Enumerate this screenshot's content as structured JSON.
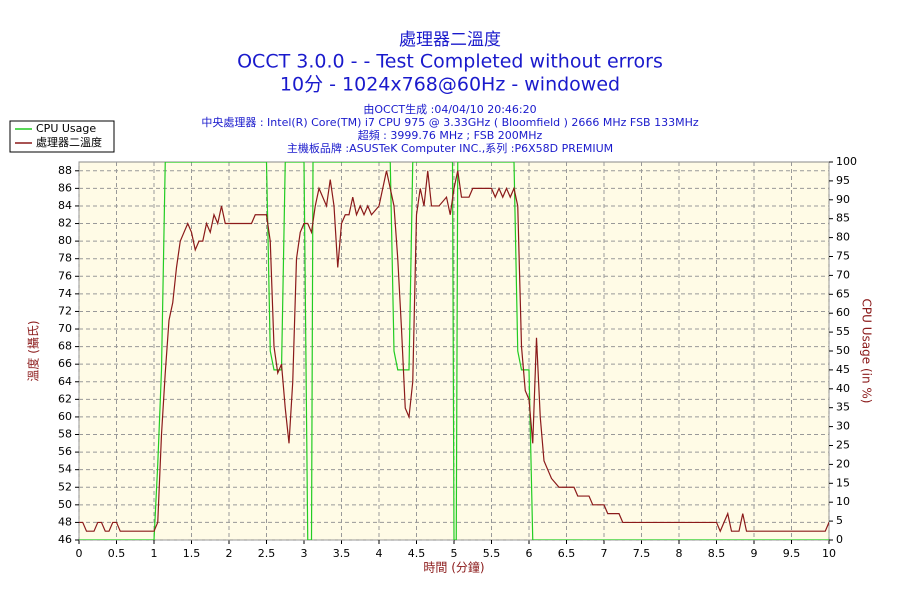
{
  "chart_data": {
    "type": "line",
    "title": "處理器二溫度",
    "subtitle": [
      "OCCT 3.0.0 -  - Test Completed without errors",
      "10分 - 1024x768@60Hz - windowed"
    ],
    "info": [
      "由OCCT生成 :04/04/10 20:46:20",
      "中央處理器 : Intel(R) Core(TM) i7 CPU 975 @ 3.33GHz ( Bloomfield ) 2666 MHz FSB 133MHz",
      "超頻 : 3999.76 MHz ; FSB 200MHz",
      "主機板品牌 :ASUSTeK Computer INC.,系列 :P6X58D PREMIUM"
    ],
    "xlabel": "時間 (分鐘)",
    "ylabel": "溫度 (攝氏)",
    "y2label": "CPU Usage (in %)",
    "xlim": [
      0,
      10
    ],
    "xticks": [
      0,
      0.5,
      1,
      1.5,
      2,
      2.5,
      3,
      3.5,
      4,
      4.5,
      5,
      5.5,
      6,
      6.5,
      7,
      7.5,
      8,
      8.5,
      9,
      9.5,
      10
    ],
    "ylim": [
      46,
      89
    ],
    "yticks": [
      46,
      48,
      50,
      52,
      54,
      56,
      58,
      60,
      62,
      64,
      66,
      68,
      70,
      72,
      74,
      76,
      78,
      80,
      82,
      84,
      86,
      88
    ],
    "y2lim": [
      0,
      100
    ],
    "y2ticks": [
      0,
      5,
      10,
      15,
      20,
      25,
      30,
      35,
      40,
      45,
      50,
      55,
      60,
      65,
      70,
      75,
      80,
      85,
      90,
      95,
      100
    ],
    "grid": true,
    "legend": "top-left",
    "series": [
      {
        "name": "CPU Usage",
        "color": "#22cc22",
        "axis": "y2",
        "x": [
          0,
          1.0,
          1.05,
          1.1,
          1.15,
          2.5,
          2.55,
          2.6,
          2.7,
          2.75,
          3.0,
          3.05,
          3.1,
          3.12,
          4.15,
          4.2,
          4.25,
          4.4,
          4.45,
          4.98,
          5.0,
          5.03,
          5.05,
          5.8,
          5.85,
          5.9,
          6.0,
          6.05,
          10
        ],
        "values": [
          0,
          0,
          20,
          45,
          100,
          100,
          50,
          45,
          45,
          100,
          100,
          0,
          0,
          100,
          100,
          50,
          45,
          45,
          100,
          100,
          0,
          0,
          100,
          100,
          50,
          45,
          45,
          0,
          0
        ]
      },
      {
        "name": "處理器二溫度",
        "color": "#8b1a1a",
        "axis": "y",
        "x": [
          0,
          0.05,
          0.1,
          0.2,
          0.25,
          0.3,
          0.35,
          0.4,
          0.45,
          0.5,
          0.55,
          1.0,
          1.05,
          1.1,
          1.15,
          1.2,
          1.25,
          1.3,
          1.35,
          1.4,
          1.45,
          1.5,
          1.55,
          1.6,
          1.65,
          1.7,
          1.75,
          1.8,
          1.85,
          1.9,
          1.95,
          2.0,
          2.3,
          2.35,
          2.5,
          2.55,
          2.6,
          2.65,
          2.7,
          2.75,
          2.8,
          2.85,
          2.9,
          2.95,
          3.0,
          3.05,
          3.1,
          3.15,
          3.2,
          3.25,
          3.3,
          3.35,
          3.4,
          3.45,
          3.5,
          3.55,
          3.6,
          3.65,
          3.7,
          3.75,
          3.8,
          3.85,
          3.9,
          4.0,
          4.05,
          4.1,
          4.15,
          4.2,
          4.25,
          4.3,
          4.35,
          4.4,
          4.45,
          4.5,
          4.55,
          4.6,
          4.65,
          4.7,
          4.8,
          4.9,
          4.95,
          5.0,
          5.05,
          5.1,
          5.2,
          5.25,
          5.4,
          5.5,
          5.55,
          5.6,
          5.65,
          5.7,
          5.75,
          5.8,
          5.85,
          5.9,
          5.95,
          6.0,
          6.05,
          6.1,
          6.15,
          6.2,
          6.25,
          6.3,
          6.4,
          6.6,
          6.65,
          6.8,
          6.85,
          7.0,
          7.05,
          7.2,
          7.25,
          7.5,
          8.0,
          8.5,
          8.55,
          8.6,
          8.65,
          8.7,
          8.8,
          8.85,
          8.9,
          9.0,
          9.95,
          10.0
        ],
        "values": [
          48,
          48,
          47,
          47,
          48,
          48,
          47,
          47,
          48,
          48,
          47,
          47,
          48,
          58,
          65,
          71,
          73,
          77,
          80,
          81,
          82,
          81,
          79,
          80,
          80,
          82,
          81,
          83,
          82,
          84,
          82,
          82,
          82,
          83,
          83,
          80,
          68,
          65,
          66,
          61,
          57,
          64,
          78,
          81,
          82,
          82,
          81,
          84,
          86,
          85,
          84,
          87,
          84,
          77,
          82,
          83,
          83,
          85,
          83,
          84,
          83,
          84,
          83,
          84,
          86,
          88,
          86,
          84,
          78,
          70,
          61,
          60,
          64,
          83,
          86,
          84,
          88,
          84,
          84,
          85,
          83,
          86,
          88,
          85,
          85,
          86,
          86,
          86,
          85,
          86,
          85,
          86,
          85,
          86,
          84,
          68,
          63,
          62,
          57,
          69,
          60,
          55,
          54,
          53,
          52,
          52,
          51,
          51,
          50,
          50,
          49,
          49,
          48,
          48,
          48,
          48,
          47,
          48,
          49,
          47,
          47,
          49,
          47,
          47,
          47,
          48
        ]
      }
    ]
  }
}
